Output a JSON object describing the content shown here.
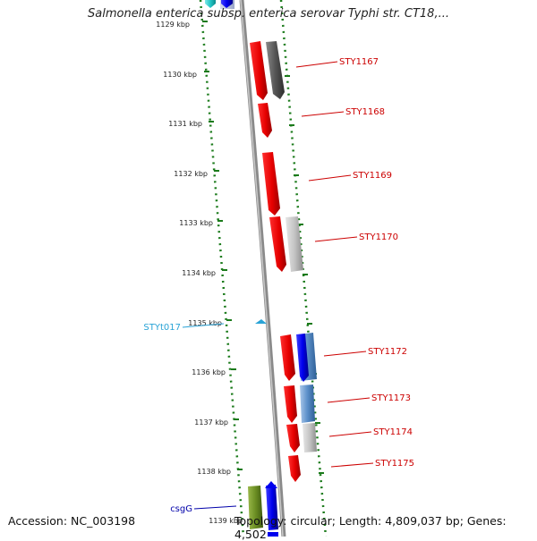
{
  "title": "Salmonella enterica subsp. enterica serovar Typhi str. CT18,...",
  "footer": {
    "accession": "Accession: NC_003198",
    "topology": "Topology: circular; Length: 4,809,037 bp; Genes: 4,502"
  },
  "colors": {
    "ruler_dots": "#1a7a1a",
    "backbone": "#8a8a8a",
    "gene_red": "#e60000",
    "gene_label_red": "#cc0000",
    "gene_dark_gray": "#555555",
    "gene_light_gray": "#bdbdbd",
    "gene_blue": "#0000ee",
    "gene_steel_blue": "#5b8fc9",
    "gene_olive": "#6b8e23",
    "gene_cyan": "#22c6c6",
    "trna_label": "#29a3d6",
    "csg_label": "#0000aa"
  },
  "ruler": {
    "ticks": [
      {
        "label": "1129 kbp"
      },
      {
        "label": "1130 kbp"
      },
      {
        "label": "1131 kbp"
      },
      {
        "label": "1132 kbp"
      },
      {
        "label": "1133 kbp"
      },
      {
        "label": "1134 kbp"
      },
      {
        "label": "1135 kbp"
      },
      {
        "label": "1136 kbp"
      },
      {
        "label": "1137 kbp"
      },
      {
        "label": "1138 kbp"
      },
      {
        "label": "1139 kbp"
      }
    ]
  },
  "genes": [
    {
      "label": "STY1167"
    },
    {
      "label": "STY1168"
    },
    {
      "label": "STY1169"
    },
    {
      "label": "STY1170"
    },
    {
      "label": "STY1172"
    },
    {
      "label": "STY1173"
    },
    {
      "label": "STY1174"
    },
    {
      "label": "STY1175"
    }
  ],
  "features_left": [
    {
      "label": "STYt017"
    },
    {
      "label": "csgG"
    }
  ]
}
